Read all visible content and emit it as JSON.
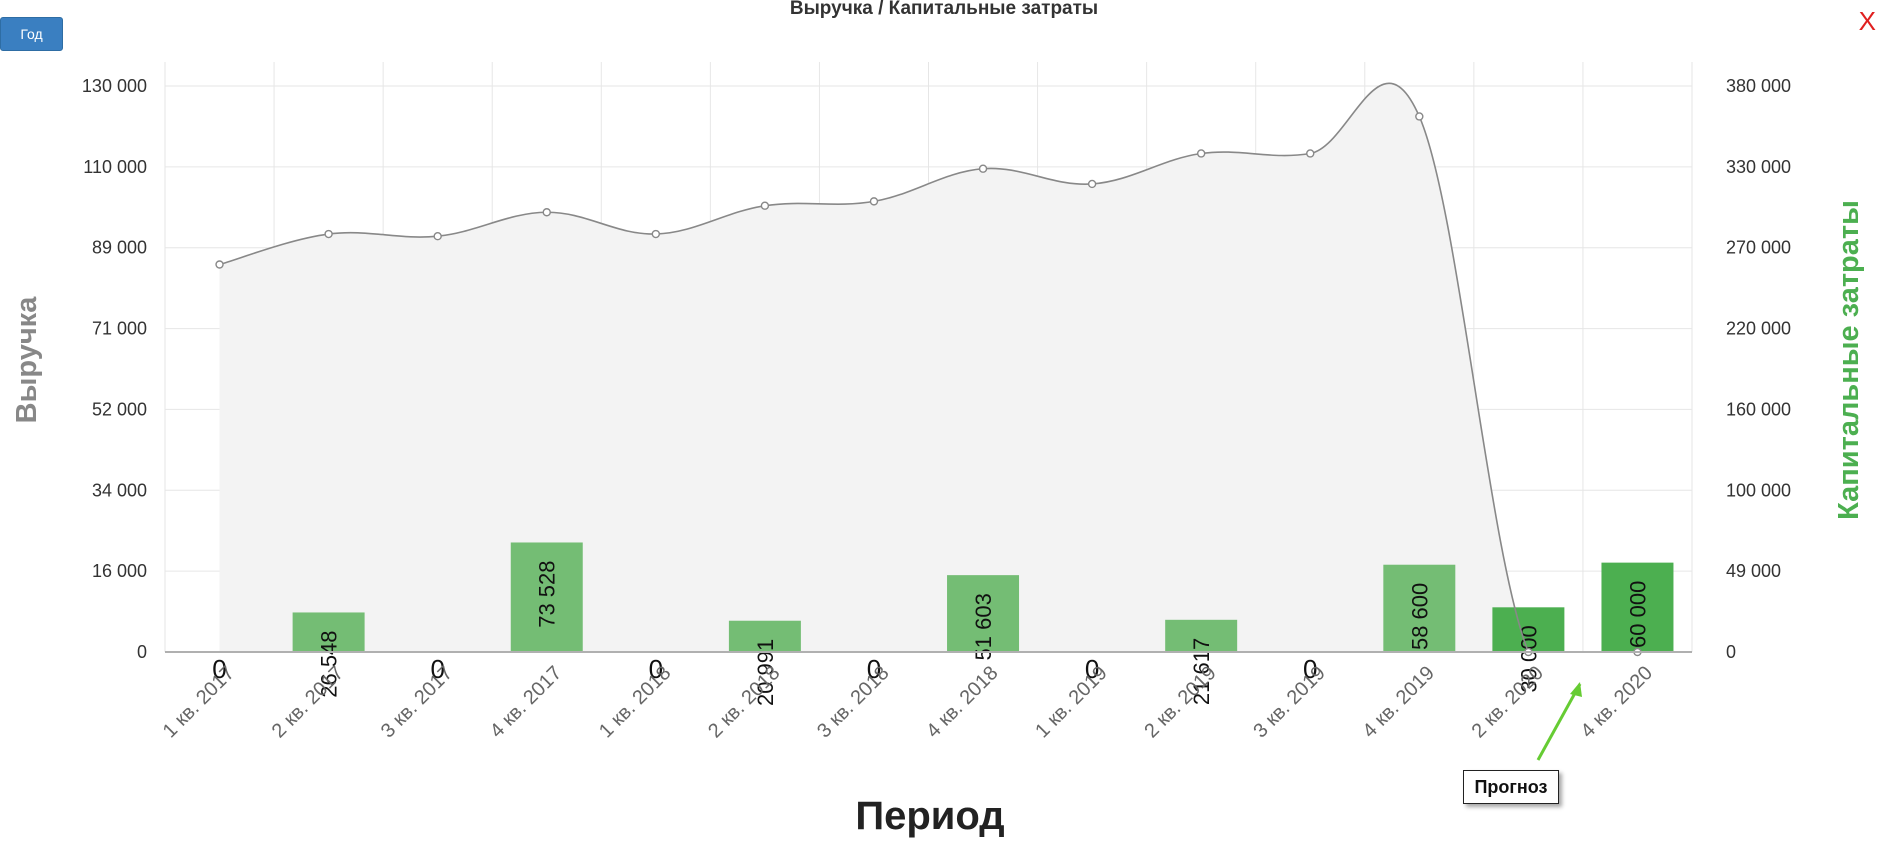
{
  "toolbar": {
    "period_button": "Год",
    "close_label": "X"
  },
  "colors": {
    "bar": "#74bd74",
    "bar_forecast": "#4caf50",
    "line": "#888888",
    "area": "#f3f3f3",
    "grid": "#e6e6e6",
    "right_axis_label": "#4caf50",
    "left_axis_label": "#888888",
    "annotation_arrow": "#66cc33"
  },
  "chart_data": {
    "type": "bar",
    "title": "Выручка / Капитальные затраты",
    "xlabel": "Период",
    "ylabel": "Выручка",
    "y2label": "Капитальные затраты",
    "categories": [
      "1 кв. 2017",
      "2 кв. 2017",
      "3 кв. 2017",
      "4 кв. 2017",
      "1 кв. 2018",
      "2 кв. 2018",
      "3 кв. 2018",
      "4 кв. 2018",
      "1 кв. 2019",
      "2 кв. 2019",
      "3 кв. 2019",
      "4 кв. 2019",
      "2 кв. 2020",
      "4 кв. 2020"
    ],
    "y_ticks": [
      "130 000",
      "110 000",
      "89 000",
      "71 000",
      "52 000",
      "34 000",
      "16 000",
      "0"
    ],
    "y2_ticks": [
      "380 000",
      "330 000",
      "270 000",
      "220 000",
      "160 000",
      "100 000",
      "49 000",
      "0"
    ],
    "ylim": [
      0,
      130000
    ],
    "y2lim": [
      0,
      380000
    ],
    "grid": true,
    "series": [
      {
        "name": "Выручка",
        "type": "area-spline",
        "axis": "left",
        "values": [
          89000,
          96000,
          95500,
          101000,
          96000,
          102500,
          103500,
          111000,
          107500,
          114500,
          114500,
          123000,
          0,
          0
        ]
      },
      {
        "name": "Капитальные затраты",
        "type": "bar",
        "axis": "right",
        "values": [
          0,
          26548,
          0,
          73528,
          0,
          20991,
          0,
          51603,
          0,
          21617,
          0,
          58600,
          30000,
          60000
        ],
        "labels": [
          "0",
          "26 548",
          "0",
          "73 528",
          "0",
          "20 991",
          "0",
          "51 603",
          "0",
          "21 617",
          "0",
          "58 600",
          "30 000",
          "60 000"
        ],
        "forecast": [
          false,
          false,
          false,
          false,
          false,
          false,
          false,
          false,
          false,
          false,
          false,
          false,
          true,
          true
        ]
      }
    ],
    "annotations": [
      {
        "text": "Прогноз",
        "target_category": "2 кв. 2020"
      }
    ]
  }
}
